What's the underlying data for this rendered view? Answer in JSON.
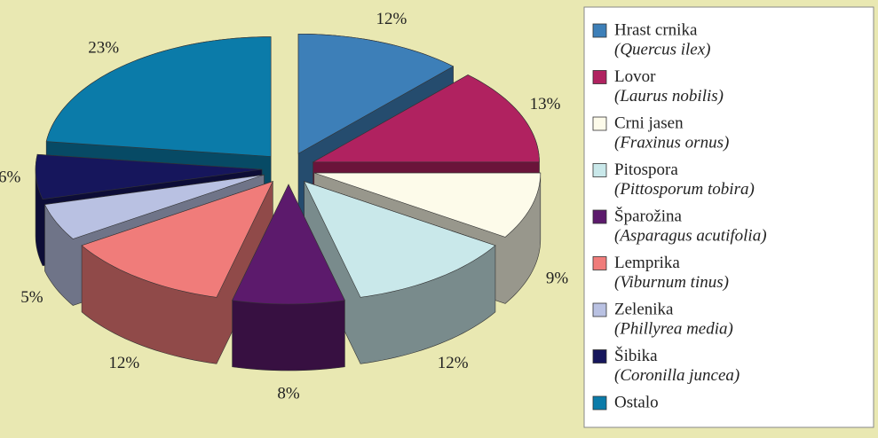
{
  "chart_data": {
    "type": "pie",
    "categories": [
      "Hrast crnika",
      "Lovor",
      "Crni jasen",
      "Pitospora",
      "Šparožina",
      "Lemprika",
      "Zelenika",
      "Šibika",
      "Ostalo"
    ],
    "latin_names": [
      "(Quercus ilex)",
      "(Laurus nobilis)",
      "(Fraxinus ornus)",
      "(Pittosporum tobira)",
      "(Asparagus acutifolia)",
      "(Viburnum tinus)",
      "(Phillyrea media)",
      "(Coronilla juncea)",
      null
    ],
    "values": [
      12,
      13,
      9,
      12,
      8,
      12,
      5,
      6,
      23
    ],
    "value_labels": [
      "12%",
      "13%",
      "9%",
      "12%",
      "8%",
      "12%",
      "5%",
      "6%",
      "23%"
    ],
    "colors": [
      "#3d7fb8",
      "#b02260",
      "#fdfbea",
      "#c9e8ea",
      "#5c1a6c",
      "#f07c7a",
      "#b9c1e2",
      "#16165c",
      "#0b7ba9"
    ]
  }
}
